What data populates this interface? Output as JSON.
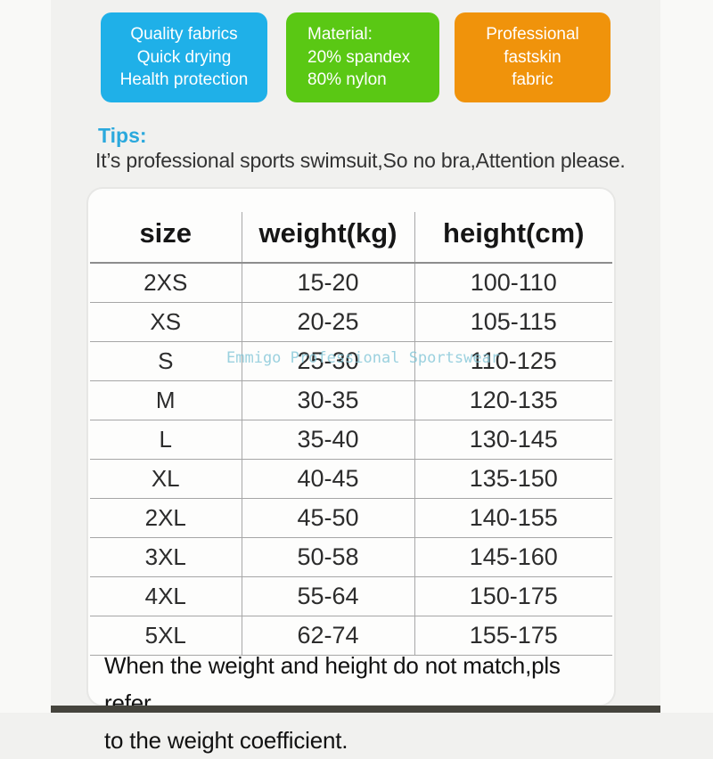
{
  "badges": [
    {
      "name": "quality",
      "color": "#1fb0e8",
      "lines": [
        "Quality fabrics",
        "Quick drying",
        "Health protection"
      ]
    },
    {
      "name": "material",
      "color": "#5ac814",
      "lines": [
        "Material:",
        "20% spandex",
        "80% nylon"
      ]
    },
    {
      "name": "professional-fabric",
      "color": "#f0930b",
      "lines": [
        "Professional",
        "fastskin",
        "fabric"
      ]
    }
  ],
  "tips": {
    "heading": "Tips:",
    "text": "It’s professional sports swimsuit,So no bra,Attention please."
  },
  "size_table": {
    "columns": [
      "size",
      "weight(kg)",
      "height(cm)"
    ],
    "rows": [
      {
        "size": "2XS",
        "weight": "15-20",
        "height": "100-110"
      },
      {
        "size": "XS",
        "weight": "20-25",
        "height": "105-115"
      },
      {
        "size": "S",
        "weight": "25-30",
        "height": "110-125"
      },
      {
        "size": "M",
        "weight": "30-35",
        "height": "120-135"
      },
      {
        "size": "L",
        "weight": "35-40",
        "height": "130-145"
      },
      {
        "size": "XL",
        "weight": "40-45",
        "height": "135-150"
      },
      {
        "size": "2XL",
        "weight": "45-50",
        "height": "140-155"
      },
      {
        "size": "3XL",
        "weight": "50-58",
        "height": "145-160"
      },
      {
        "size": "4XL",
        "weight": "55-64",
        "height": "150-175"
      },
      {
        "size": "5XL",
        "weight": "62-74",
        "height": "155-175"
      }
    ]
  },
  "watermark": "Emmigo Professional Sportswear",
  "footer": {
    "lines": [
      "When the weight and height do not match,pls refer",
      "to the weight coefficient."
    ]
  },
  "colors": {
    "badge_blue": "#1fb0e8",
    "badge_green": "#5ac814",
    "badge_orange": "#f0930b",
    "tips_blue": "#2ba9dd",
    "watermark_blue": "#82c6d7",
    "bottom_bar": "#45443d"
  }
}
